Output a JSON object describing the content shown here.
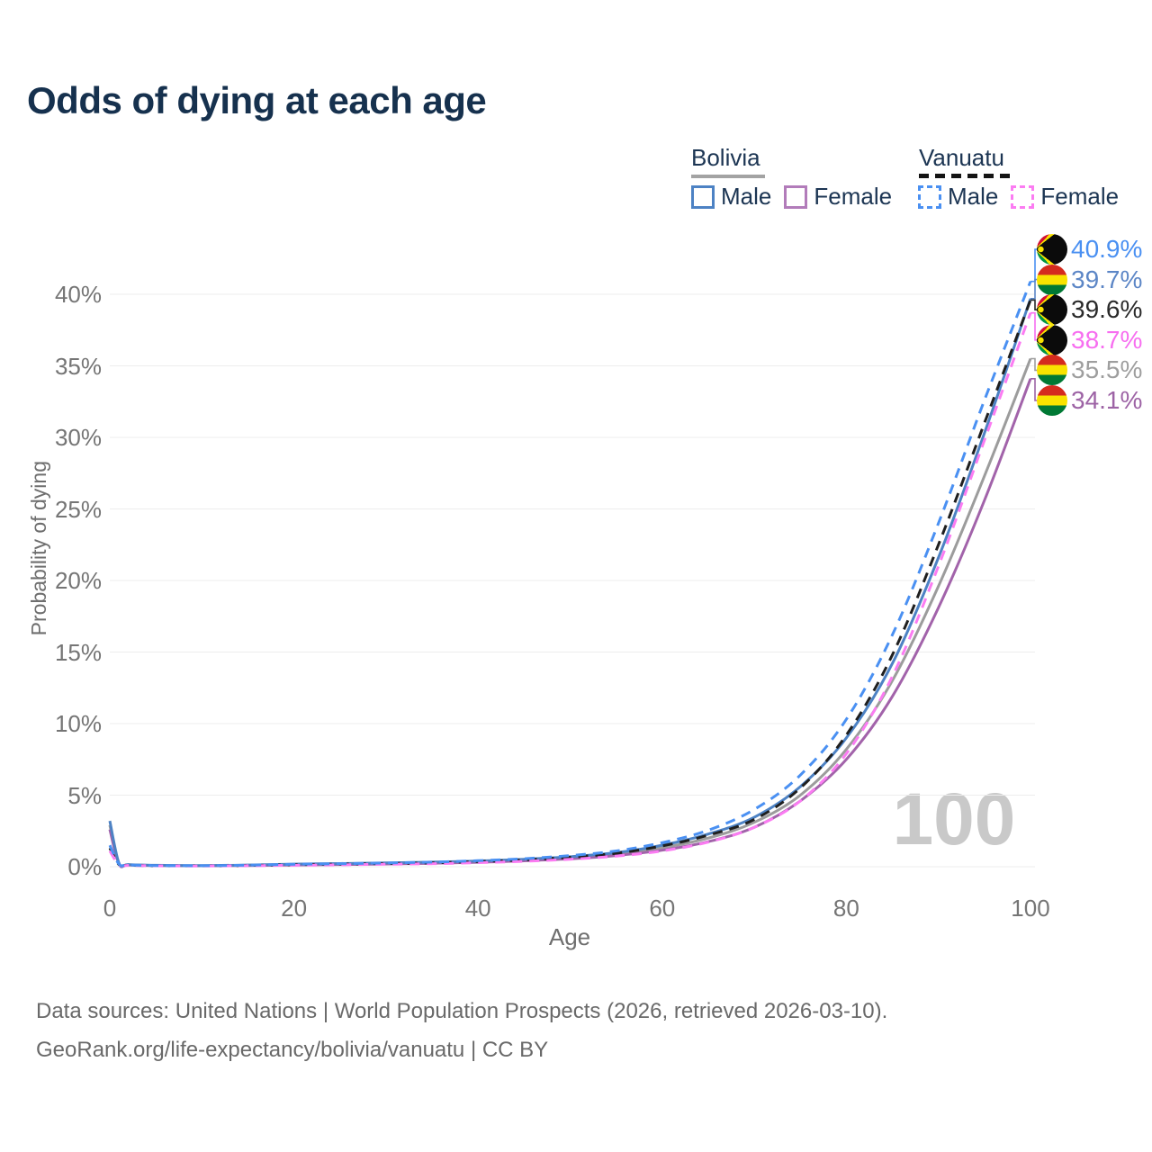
{
  "title": "Odds of dying at each age",
  "legend": {
    "groups": [
      {
        "label": "Bolivia",
        "line_style": "solid",
        "underline_color": "#a3a3a3",
        "items": [
          {
            "label": "Male",
            "color": "#4d82c4",
            "dash": "solid"
          },
          {
            "label": "Female",
            "color": "#b27cba",
            "dash": "solid"
          }
        ]
      },
      {
        "label": "Vanuatu",
        "line_style": "dashed",
        "underline_color": "#141414",
        "items": [
          {
            "label": "Male",
            "color": "#4a90f2",
            "dash": "dashed"
          },
          {
            "label": "Female",
            "color": "#fb7cf2",
            "dash": "dashed"
          }
        ]
      }
    ]
  },
  "chart_data": {
    "type": "line",
    "title": "Odds of dying at each age",
    "xlabel": "Age",
    "ylabel": "Probability of dying",
    "xlim": [
      0,
      100
    ],
    "ylim": [
      0,
      43
    ],
    "xticks": [
      0,
      20,
      40,
      60,
      80,
      100
    ],
    "yticks": [
      0,
      5,
      10,
      15,
      20,
      25,
      30,
      35,
      40
    ],
    "ytick_suffix": "%",
    "grid": "horizontal",
    "watermark": "100",
    "x": [
      0,
      1,
      2,
      5,
      10,
      15,
      20,
      25,
      30,
      35,
      40,
      45,
      50,
      55,
      60,
      65,
      70,
      75,
      80,
      85,
      90,
      95,
      100
    ],
    "series": [
      {
        "name": "Bolivia Total",
        "color": "#9c9c9c",
        "dash": "solid",
        "values": [
          2.9,
          0.22,
          0.13,
          0.09,
          0.07,
          0.1,
          0.15,
          0.19,
          0.23,
          0.28,
          0.36,
          0.47,
          0.63,
          0.88,
          1.32,
          2.0,
          3.1,
          5.0,
          8.2,
          13.0,
          19.6,
          27.3,
          35.5
        ]
      },
      {
        "name": "Bolivia Female",
        "color": "#a263aa",
        "dash": "solid",
        "values": [
          2.6,
          0.19,
          0.12,
          0.08,
          0.06,
          0.08,
          0.12,
          0.15,
          0.19,
          0.24,
          0.31,
          0.41,
          0.55,
          0.78,
          1.15,
          1.75,
          2.75,
          4.6,
          7.5,
          11.9,
          18.1,
          25.6,
          34.1
        ]
      },
      {
        "name": "Bolivia Male",
        "color": "#4d82c4",
        "dash": "solid",
        "values": [
          3.2,
          0.25,
          0.15,
          0.1,
          0.08,
          0.12,
          0.18,
          0.22,
          0.27,
          0.32,
          0.4,
          0.52,
          0.7,
          0.98,
          1.5,
          2.28,
          3.45,
          5.6,
          9.0,
          14.2,
          21.6,
          30.3,
          39.7
        ]
      },
      {
        "name": "Vanuatu Total",
        "color": "#1f1f1f",
        "dash": "dashed",
        "values": [
          1.3,
          0.15,
          0.1,
          0.07,
          0.06,
          0.09,
          0.14,
          0.18,
          0.22,
          0.27,
          0.36,
          0.48,
          0.66,
          0.94,
          1.45,
          2.2,
          3.3,
          5.5,
          9.2,
          14.8,
          22.5,
          31.0,
          39.6
        ]
      },
      {
        "name": "Vanuatu Female",
        "color": "#fb7cf2",
        "dash": "dashed",
        "values": [
          1.1,
          0.13,
          0.09,
          0.06,
          0.05,
          0.07,
          0.1,
          0.13,
          0.17,
          0.21,
          0.28,
          0.38,
          0.52,
          0.74,
          1.1,
          1.72,
          2.75,
          4.6,
          7.9,
          13.3,
          21.0,
          29.8,
          38.7
        ]
      },
      {
        "name": "Vanuatu Male",
        "color": "#4a90f2",
        "dash": "dashed",
        "values": [
          1.5,
          0.18,
          0.12,
          0.08,
          0.07,
          0.11,
          0.17,
          0.21,
          0.26,
          0.32,
          0.42,
          0.56,
          0.78,
          1.1,
          1.68,
          2.55,
          4.0,
          6.4,
          10.3,
          16.2,
          24.0,
          32.6,
          40.9
        ]
      }
    ],
    "end_labels": [
      {
        "value": "40.9%",
        "series": "Vanuatu Male",
        "flag": "vanuatu",
        "color": "#4a90f2",
        "end_pct": 40.9
      },
      {
        "value": "39.7%",
        "series": "Bolivia Male",
        "flag": "bolivia",
        "color": "#5c86c6",
        "end_pct": 39.7
      },
      {
        "value": "39.6%",
        "series": "Vanuatu Total",
        "flag": "vanuatu",
        "color": "#2a2a2a",
        "end_pct": 39.6
      },
      {
        "value": "38.7%",
        "series": "Vanuatu Female",
        "flag": "vanuatu",
        "color": "#f76ef0",
        "end_pct": 38.7
      },
      {
        "value": "35.5%",
        "series": "Bolivia Total",
        "flag": "bolivia",
        "color": "#9e9e9e",
        "end_pct": 35.5
      },
      {
        "value": "34.1%",
        "series": "Bolivia Female",
        "flag": "bolivia",
        "color": "#9d63a5",
        "end_pct": 34.1
      }
    ]
  },
  "footer": {
    "line1": "Data sources: United Nations | World Population Prospects (2026, retrieved 2026-03-10).",
    "line2": "GeoRank.org/life-expectancy/bolivia/vanuatu | CC BY"
  }
}
